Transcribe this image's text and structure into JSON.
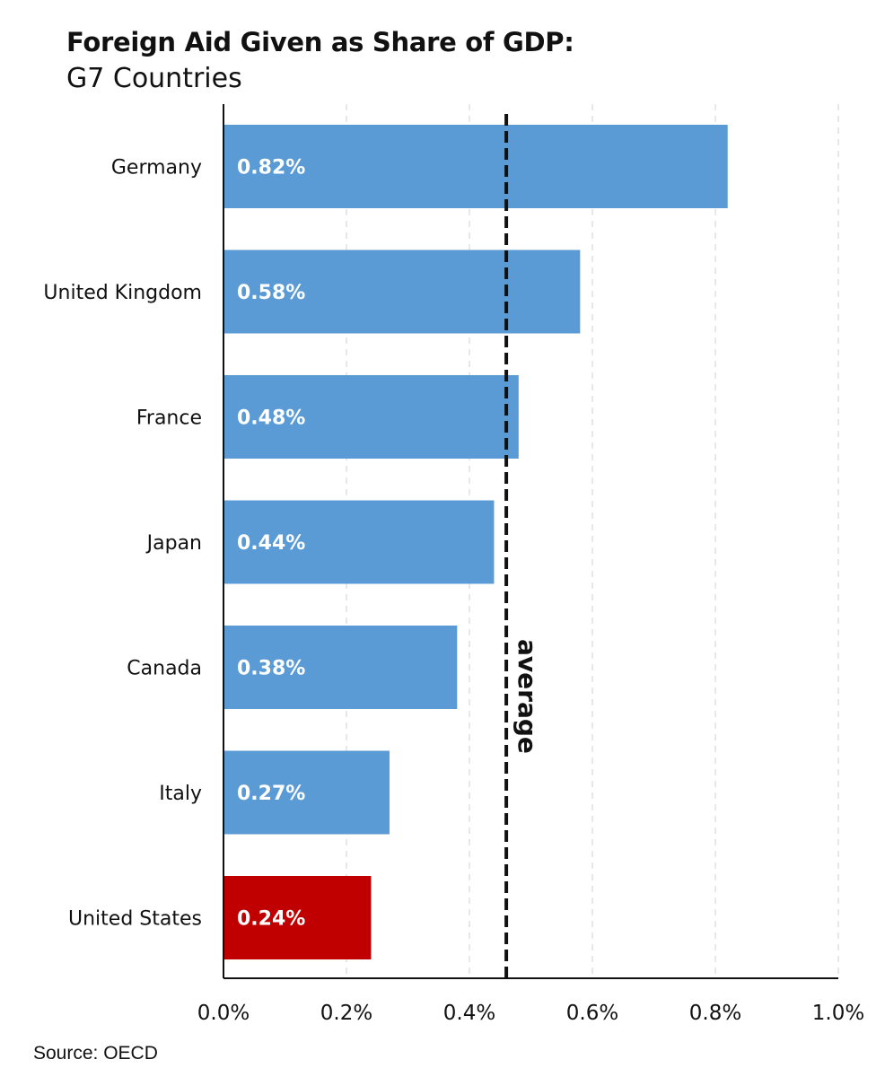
{
  "header": {
    "title": "Foreign Aid Given as Share of GDP:",
    "subtitle": "G7 Countries"
  },
  "footer": {
    "source": "Source: OECD"
  },
  "chart_data": {
    "type": "bar",
    "orientation": "horizontal",
    "title": "Foreign Aid Given as Share of GDP:",
    "subtitle": "G7 Countries",
    "categories": [
      "Germany",
      "United Kingdom",
      "France",
      "Japan",
      "Canada",
      "Italy",
      "United States"
    ],
    "values": [
      0.82,
      0.58,
      0.48,
      0.44,
      0.38,
      0.27,
      0.24
    ],
    "data_labels": [
      "0.82%",
      "0.58%",
      "0.48%",
      "0.44%",
      "0.38%",
      "0.27%",
      "0.24%"
    ],
    "bar_colors": [
      "#5b9bd5",
      "#5b9bd5",
      "#5b9bd5",
      "#5b9bd5",
      "#5b9bd5",
      "#5b9bd5",
      "#c00000"
    ],
    "xlim": [
      0,
      1.0
    ],
    "xticks": [
      0,
      0.2,
      0.4,
      0.6,
      0.8,
      1.0
    ],
    "xtick_labels": [
      "0.0%",
      "0.2%",
      "0.4%",
      "0.6%",
      "0.8%",
      "1.0%"
    ],
    "grid": "vertical dashed",
    "reference_line": {
      "value": 0.46,
      "label": "average",
      "style": "dashed",
      "color": "#111111"
    },
    "xlabel": "",
    "ylabel": ""
  },
  "colors": {
    "bar": "#5b9bd5",
    "highlight": "#c00000",
    "text": "#111111",
    "grid": "#d9d9d9"
  }
}
